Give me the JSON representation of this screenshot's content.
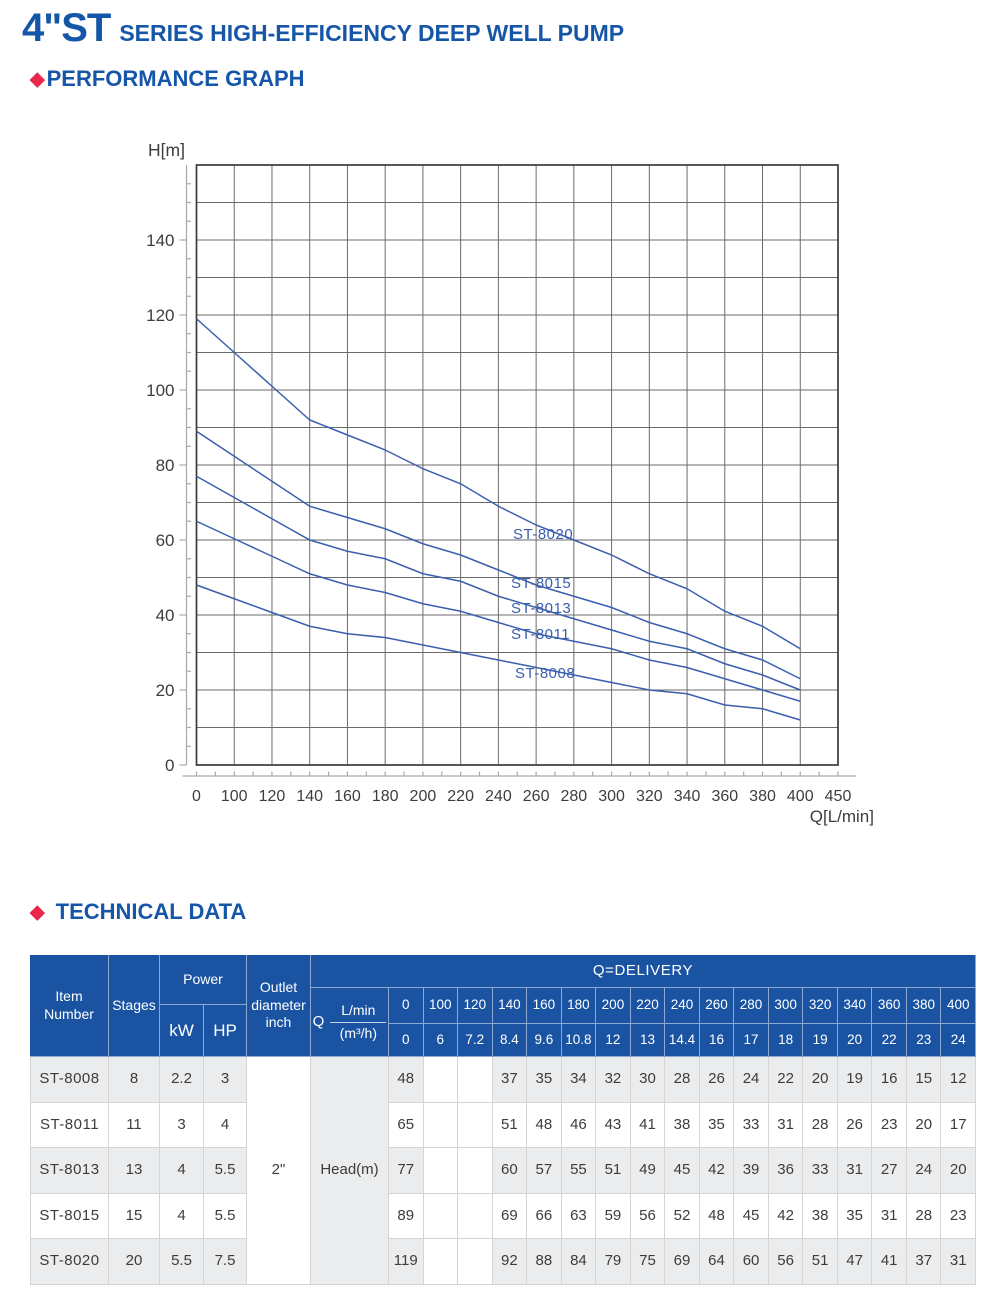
{
  "page": {
    "title_series": "4\"ST",
    "title_rest": "SERIES HIGH-EFFICIENCY DEEP WELL PUMP",
    "diamond": "◆",
    "section_performance": "PERFORMANCE GRAPH",
    "section_technical": "TECHNICAL DATA",
    "colors": {
      "brand_blue": "#1656a8",
      "table_header_blue": "#1b53a3",
      "accent_red": "#e8274b",
      "curve_blue": "#3a5fae"
    }
  },
  "chart_data": {
    "type": "line",
    "title": "",
    "ylabel": "H[m]",
    "xlabel": "Q[L/min]",
    "x_tick_labels": [
      "0",
      "100",
      "120",
      "140",
      "160",
      "180",
      "200",
      "220",
      "240",
      "260",
      "280",
      "300",
      "320",
      "340",
      "360",
      "380",
      "400",
      "450"
    ],
    "y_tick_labels": [
      0,
      20,
      40,
      60,
      80,
      100,
      120,
      140
    ],
    "ylim": [
      0,
      160
    ],
    "grid": true,
    "legend_position": "on-curve",
    "series": [
      {
        "name": "ST-8020",
        "values": [
          119,
          null,
          null,
          92,
          88,
          84,
          79,
          75,
          69,
          64,
          60,
          56,
          51,
          47,
          41,
          37,
          31
        ]
      },
      {
        "name": "ST-8015",
        "values": [
          89,
          null,
          null,
          69,
          66,
          63,
          59,
          56,
          52,
          48,
          45,
          42,
          38,
          35,
          31,
          28,
          23
        ]
      },
      {
        "name": "ST-8013",
        "values": [
          77,
          null,
          null,
          60,
          57,
          55,
          51,
          49,
          45,
          42,
          39,
          36,
          33,
          31,
          27,
          24,
          20
        ]
      },
      {
        "name": "ST-8011",
        "values": [
          65,
          null,
          null,
          51,
          48,
          46,
          43,
          41,
          38,
          35,
          33,
          31,
          28,
          26,
          23,
          20,
          17
        ]
      },
      {
        "name": "ST-8008",
        "values": [
          48,
          null,
          null,
          37,
          35,
          34,
          32,
          30,
          28,
          26,
          24,
          22,
          20,
          19,
          16,
          15,
          12
        ]
      }
    ]
  },
  "table": {
    "headers": {
      "item": "Item Number",
      "stages": "Stages",
      "power": "Power",
      "kw": "kW",
      "hp": "HP",
      "outlet": "Outlet diameter inch",
      "q_delivery": "Q=DELIVERY",
      "q": "Q",
      "q_unit_top": "L/min",
      "q_unit_bottom": "(m³/h)",
      "head_label": "Head(m)"
    },
    "outlet_value": "2\"",
    "delivery_lmin": [
      "0",
      "100",
      "120",
      "140",
      "160",
      "180",
      "200",
      "220",
      "240",
      "260",
      "280",
      "300",
      "320",
      "340",
      "360",
      "380",
      "400"
    ],
    "delivery_m3h": [
      "0",
      "6",
      "7.2",
      "8.4",
      "9.6",
      "10.8",
      "12",
      "13",
      "14.4",
      "16",
      "17",
      "18",
      "19",
      "20",
      "22",
      "23",
      "24"
    ],
    "rows": [
      {
        "item": "ST-8008",
        "stages": "8",
        "kw": "2.2",
        "hp": "3",
        "head": [
          "48",
          "",
          "",
          "37",
          "35",
          "34",
          "32",
          "30",
          "28",
          "26",
          "24",
          "22",
          "20",
          "19",
          "16",
          "15",
          "12"
        ]
      },
      {
        "item": "ST-8011",
        "stages": "11",
        "kw": "3",
        "hp": "4",
        "head": [
          "65",
          "",
          "",
          "51",
          "48",
          "46",
          "43",
          "41",
          "38",
          "35",
          "33",
          "31",
          "28",
          "26",
          "23",
          "20",
          "17"
        ]
      },
      {
        "item": "ST-8013",
        "stages": "13",
        "kw": "4",
        "hp": "5.5",
        "head": [
          "77",
          "",
          "",
          "60",
          "57",
          "55",
          "51",
          "49",
          "45",
          "42",
          "39",
          "36",
          "33",
          "31",
          "27",
          "24",
          "20"
        ]
      },
      {
        "item": "ST-8015",
        "stages": "15",
        "kw": "4",
        "hp": "5.5",
        "head": [
          "89",
          "",
          "",
          "69",
          "66",
          "63",
          "59",
          "56",
          "52",
          "48",
          "45",
          "42",
          "38",
          "35",
          "31",
          "28",
          "23"
        ]
      },
      {
        "item": "ST-8020",
        "stages": "20",
        "kw": "5.5",
        "hp": "7.5",
        "head": [
          "119",
          "",
          "",
          "92",
          "88",
          "84",
          "79",
          "75",
          "69",
          "64",
          "60",
          "56",
          "51",
          "47",
          "41",
          "37",
          "31"
        ]
      }
    ]
  }
}
